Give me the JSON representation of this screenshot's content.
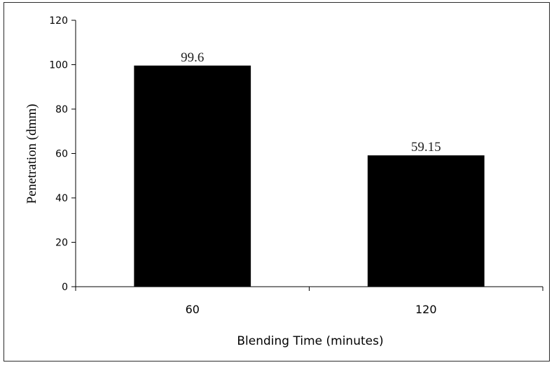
{
  "chart_data": {
    "type": "bar",
    "title": "",
    "categories": [
      "60",
      "120"
    ],
    "values": [
      99.6,
      59.15
    ],
    "data_labels": [
      "99.6",
      "59.15"
    ],
    "xlabel": "Blending Time (minutes)",
    "ylabel": "Penetration (dmm)",
    "ylim": [
      0,
      120
    ],
    "yticks": [
      0,
      20,
      40,
      60,
      80,
      100,
      120
    ],
    "ytick_labels": [
      "0",
      "20",
      "40",
      "60",
      "80",
      "100",
      "120"
    ],
    "grid": false,
    "legend": "none",
    "bar_color": "#000000"
  }
}
